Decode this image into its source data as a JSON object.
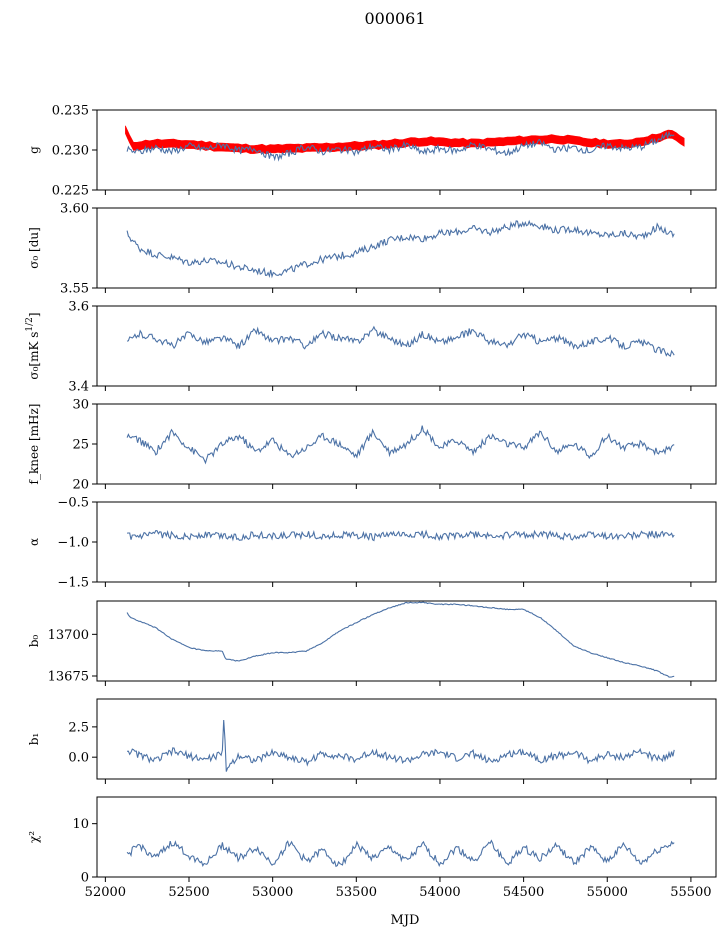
{
  "figure": {
    "title": "000061"
  },
  "colors": {
    "series": "#4c72a6",
    "reference": "#ff0000"
  },
  "chart_data": {
    "type": "line",
    "shared_x": {
      "label": "MJD",
      "lim": [
        51950,
        55650
      ],
      "ticks": [
        52000,
        52500,
        53000,
        53500,
        54000,
        54500,
        55000,
        55500
      ],
      "tick_labels": [
        "52000",
        "52500",
        "53000",
        "53500",
        "54000",
        "54500",
        "55000",
        "55500"
      ]
    },
    "panels": [
      {
        "id": "g",
        "ylabel_main": "g",
        "ylabel_sub": "",
        "ylim": [
          0.225,
          0.235
        ],
        "yticks": [
          0.225,
          0.23,
          0.235
        ],
        "ytick_labels": [
          "0.225",
          "0.230",
          "0.235"
        ],
        "series": [
          {
            "color_key": "reference",
            "shape": "band",
            "x": [
              52120,
              52160,
              52300,
              52500,
              52800,
              53000,
              53300,
              53600,
              53900,
              54200,
              54500,
              54700,
              54900,
              55100,
              55250,
              55380,
              55460
            ],
            "y": [
              0.2325,
              0.2305,
              0.2308,
              0.2307,
              0.2302,
              0.2301,
              0.2303,
              0.2306,
              0.2311,
              0.2308,
              0.2312,
              0.2314,
              0.2309,
              0.2307,
              0.2313,
              0.232,
              0.231
            ],
            "halfwidth": 0.0005
          },
          {
            "color_key": "series",
            "x": [
              52130,
              52200,
              52300,
              52400,
              52500,
              52600,
              52700,
              52800,
              52900,
              53000,
              53100,
              53200,
              53300,
              53400,
              53500,
              53600,
              53700,
              53800,
              53900,
              54000,
              54100,
              54200,
              54300,
              54400,
              54500,
              54600,
              54700,
              54800,
              54900,
              55000,
              55100,
              55200,
              55300,
              55400
            ],
            "y": [
              0.23,
              0.2297,
              0.2303,
              0.2298,
              0.2305,
              0.2301,
              0.2307,
              0.2299,
              0.2302,
              0.229,
              0.2296,
              0.2304,
              0.2298,
              0.2301,
              0.2297,
              0.2305,
              0.23,
              0.2306,
              0.2297,
              0.2302,
              0.2299,
              0.2307,
              0.2301,
              0.2296,
              0.2305,
              0.2309,
              0.23,
              0.2303,
              0.2299,
              0.2306,
              0.2302,
              0.2304,
              0.2312,
              0.2322
            ]
          }
        ]
      },
      {
        "id": "sigma0_du",
        "ylabel_main": "σ₀ [du]",
        "ylabel_sub": "",
        "ylim": [
          3.55,
          3.6
        ],
        "yticks": [
          3.55,
          3.6
        ],
        "ytick_labels": [
          "3.55",
          "3.60"
        ],
        "series": [
          {
            "color_key": "series",
            "x": [
              52130,
              52200,
              52300,
              52400,
              52500,
              52600,
              52700,
              52800,
              52900,
              53000,
              53100,
              53200,
              53300,
              53400,
              53500,
              53600,
              53700,
              53800,
              53900,
              54000,
              54100,
              54200,
              54300,
              54400,
              54500,
              54600,
              54700,
              54800,
              54900,
              55000,
              55100,
              55200,
              55300,
              55400
            ],
            "y": [
              3.584,
              3.575,
              3.571,
              3.569,
              3.566,
              3.567,
              3.566,
              3.563,
              3.561,
              3.559,
              3.561,
              3.565,
              3.568,
              3.57,
              3.572,
              3.576,
              3.58,
              3.582,
              3.581,
              3.584,
              3.585,
              3.587,
              3.585,
              3.588,
              3.591,
              3.589,
              3.586,
              3.587,
              3.584,
              3.583,
              3.584,
              3.582,
              3.588,
              3.583
            ]
          }
        ]
      },
      {
        "id": "sigma0_mk",
        "ylabel_main": "σ₀[mK s",
        "ylabel_sub": "1/2",
        "ylim": [
          3.4,
          3.6
        ],
        "yticks": [
          3.4,
          3.6
        ],
        "ytick_labels": [
          "3.4",
          "3.6"
        ],
        "series": [
          {
            "color_key": "series",
            "x": [
              52130,
              52200,
              52300,
              52400,
              52500,
              52600,
              52700,
              52800,
              52900,
              53000,
              53100,
              53200,
              53300,
              53400,
              53500,
              53600,
              53700,
              53800,
              53900,
              54000,
              54100,
              54200,
              54300,
              54400,
              54500,
              54600,
              54700,
              54800,
              54900,
              55000,
              55100,
              55200,
              55300,
              55400
            ],
            "y": [
              3.51,
              3.53,
              3.52,
              3.5,
              3.53,
              3.51,
              3.52,
              3.5,
              3.54,
              3.51,
              3.52,
              3.5,
              3.53,
              3.52,
              3.51,
              3.54,
              3.52,
              3.5,
              3.53,
              3.51,
              3.52,
              3.54,
              3.51,
              3.5,
              3.53,
              3.51,
              3.52,
              3.5,
              3.51,
              3.52,
              3.5,
              3.51,
              3.49,
              3.48
            ]
          }
        ]
      },
      {
        "id": "fknee",
        "ylabel_main": "f_knee [mHz]",
        "ylabel_sub": "",
        "ylim": [
          20,
          30
        ],
        "yticks": [
          20,
          25,
          30
        ],
        "ytick_labels": [
          "20",
          "25",
          "30"
        ],
        "series": [
          {
            "color_key": "series",
            "x": [
              52130,
              52200,
              52300,
              52400,
              52500,
              52600,
              52700,
              52800,
              52900,
              53000,
              53100,
              53200,
              53300,
              53400,
              53500,
              53600,
              53700,
              53800,
              53900,
              54000,
              54100,
              54200,
              54300,
              54400,
              54500,
              54600,
              54700,
              54800,
              54900,
              55000,
              55100,
              55200,
              55300,
              55400
            ],
            "y": [
              26.0,
              25.5,
              24.0,
              26.5,
              24.5,
              23.0,
              25.0,
              26.0,
              24.0,
              25.5,
              23.5,
              24.5,
              26.0,
              25.0,
              23.5,
              26.5,
              24.0,
              25.0,
              27.0,
              24.5,
              25.5,
              24.0,
              26.0,
              25.0,
              24.5,
              26.5,
              24.0,
              25.0,
              23.5,
              26.0,
              24.5,
              25.0,
              24.0,
              24.5
            ]
          }
        ]
      },
      {
        "id": "alpha",
        "ylabel_main": "α",
        "ylabel_sub": "",
        "ylim": [
          -1.5,
          -0.5
        ],
        "yticks": [
          -1.5,
          -1.0,
          -0.5
        ],
        "ytick_labels": [
          "−1.5",
          "−1.0",
          "−0.5"
        ],
        "series": [
          {
            "color_key": "series",
            "x": [
              52130,
              52200,
              52300,
              52400,
              52500,
              52600,
              52700,
              52800,
              52900,
              53000,
              53100,
              53200,
              53300,
              53400,
              53500,
              53600,
              53700,
              53800,
              53900,
              54000,
              54100,
              54200,
              54300,
              54400,
              54500,
              54600,
              54700,
              54800,
              54900,
              55000,
              55100,
              55200,
              55300,
              55400
            ],
            "y": [
              -0.93,
              -0.94,
              -0.9,
              -0.92,
              -0.93,
              -0.91,
              -0.92,
              -0.94,
              -0.91,
              -0.93,
              -0.92,
              -0.9,
              -0.93,
              -0.91,
              -0.92,
              -0.94,
              -0.91,
              -0.92,
              -0.9,
              -0.93,
              -0.92,
              -0.91,
              -0.93,
              -0.92,
              -0.91,
              -0.9,
              -0.92,
              -0.93,
              -0.91,
              -0.92,
              -0.93,
              -0.91,
              -0.9,
              -0.92
            ]
          }
        ]
      },
      {
        "id": "b0",
        "ylabel_main": "b₀",
        "ylabel_sub": "",
        "ylim": [
          13672,
          13720
        ],
        "yticks": [
          13675,
          13700
        ],
        "ytick_labels": [
          "13675",
          "13700"
        ],
        "series": [
          {
            "color_key": "series",
            "x": [
              52130,
              52150,
              52200,
              52300,
              52400,
              52500,
              52600,
              52700,
              52720,
              52800,
              52900,
              53000,
              53100,
              53200,
              53300,
              53400,
              53500,
              53600,
              53700,
              53800,
              53900,
              54000,
              54100,
              54200,
              54300,
              54400,
              54500,
              54600,
              54700,
              54800,
              54900,
              55000,
              55100,
              55200,
              55300,
              55380,
              55400
            ],
            "y": [
              13713,
              13710,
              13708,
              13704,
              13697,
              13692,
              13690,
              13690,
              13685,
              13684,
              13687,
              13689,
              13689,
              13690,
              13695,
              13702,
              13707,
              13712,
              13716,
              13719,
              13719,
              13718,
              13718,
              13717,
              13716,
              13715,
              13715,
              13710,
              13702,
              13693,
              13689,
              13686,
              13683,
              13681,
              13678,
              13674,
              13675
            ]
          }
        ]
      },
      {
        "id": "b1",
        "ylabel_main": "b₁",
        "ylabel_sub": "",
        "ylim": [
          -1.8,
          4.8
        ],
        "yticks": [
          0.0,
          2.5
        ],
        "ytick_labels": [
          "0.0",
          "2.5"
        ],
        "series": [
          {
            "color_key": "series",
            "x": [
              52130,
              52200,
              52300,
              52400,
              52500,
              52600,
              52700,
              52710,
              52720,
              52800,
              52900,
              53000,
              53100,
              53200,
              53300,
              53400,
              53500,
              53600,
              53700,
              53800,
              53900,
              54000,
              54100,
              54200,
              54300,
              54400,
              54500,
              54600,
              54700,
              54800,
              54900,
              55000,
              55100,
              55200,
              55300,
              55400
            ],
            "y": [
              0.6,
              0.2,
              -0.3,
              0.5,
              0.1,
              -0.2,
              0.3,
              3.9,
              -1.0,
              0.2,
              -0.3,
              0.4,
              0.0,
              -0.4,
              0.3,
              0.1,
              -0.2,
              0.5,
              0.0,
              -0.3,
              0.2,
              0.4,
              -0.1,
              0.3,
              -0.4,
              0.2,
              0.5,
              -0.2,
              0.1,
              0.4,
              -0.3,
              0.2,
              0.0,
              0.5,
              -0.2,
              0.4
            ]
          }
        ]
      },
      {
        "id": "chi2",
        "ylabel_main": "χ²",
        "ylabel_sub": "",
        "ylim": [
          0,
          15
        ],
        "yticks": [
          0,
          10
        ],
        "ytick_labels": [
          "0",
          "10"
        ],
        "series": [
          {
            "color_key": "series",
            "x": [
              52130,
              52200,
              52300,
              52400,
              52500,
              52600,
              52700,
              52800,
              52900,
              53000,
              53100,
              53200,
              53300,
              53400,
              53500,
              53600,
              53700,
              53800,
              53900,
              54000,
              54100,
              54200,
              54300,
              54400,
              54500,
              54600,
              54700,
              54800,
              54900,
              55000,
              55100,
              55200,
              55300,
              55400
            ],
            "y": [
              4.0,
              6.0,
              3.5,
              6.5,
              4.0,
              2.5,
              6.0,
              3.5,
              5.5,
              2.5,
              6.5,
              3.0,
              5.0,
              2.0,
              6.0,
              3.5,
              5.5,
              3.0,
              6.0,
              2.5,
              5.5,
              3.0,
              6.5,
              2.5,
              5.5,
              3.5,
              6.0,
              2.5,
              5.5,
              3.0,
              6.0,
              2.5,
              5.0,
              6.5
            ]
          }
        ]
      }
    ]
  }
}
